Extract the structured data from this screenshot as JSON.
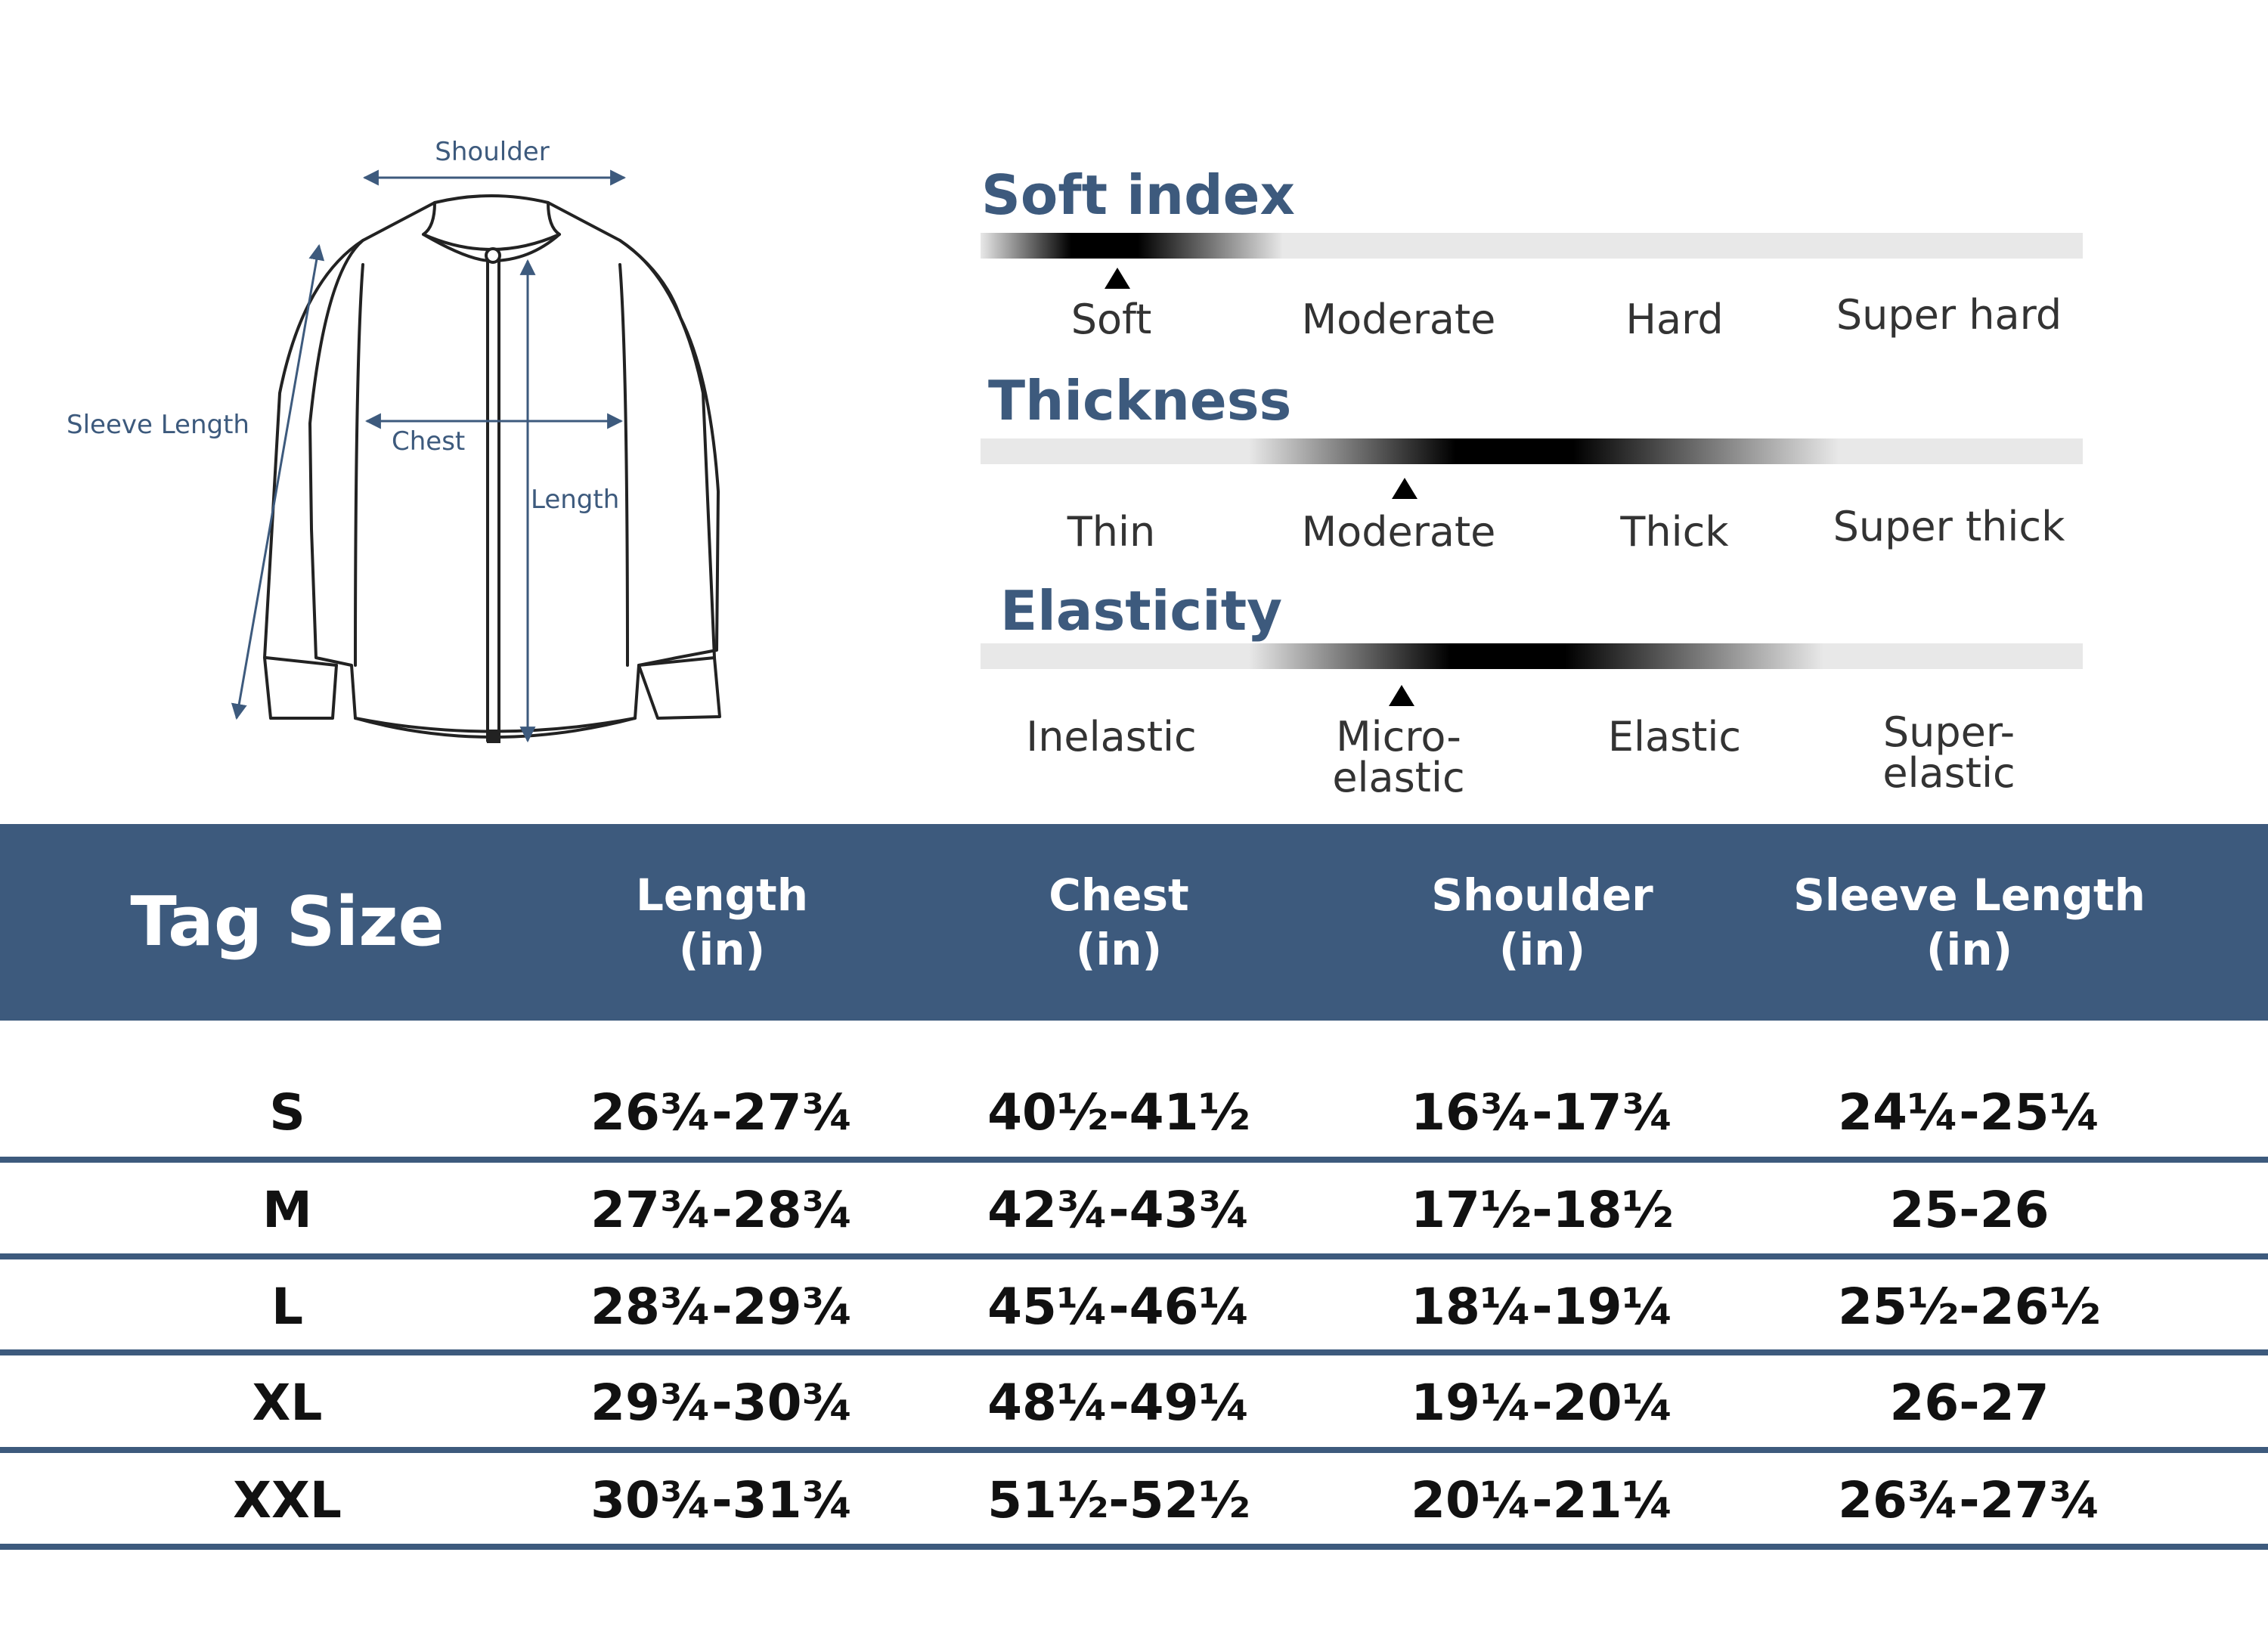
{
  "diagram": {
    "shoulder_label": "Shoulder",
    "sleeve_label": "Sleeve Length",
    "chest_label": "Chest",
    "length_label": "Length"
  },
  "scales": [
    {
      "title": "Soft index",
      "levels": [
        "Soft",
        "Moderate",
        "Hard",
        "Super hard"
      ],
      "selected": "Soft"
    },
    {
      "title": "Thickness",
      "levels": [
        "Thin",
        "Moderate",
        "Thick",
        "Super thick"
      ],
      "selected": "Moderate"
    },
    {
      "title": "Elasticity",
      "levels": [
        "Inelastic",
        "Micro-elastic",
        "Elastic",
        "Super-elastic"
      ],
      "selected": "Micro-elastic"
    }
  ],
  "size_table": {
    "tag_header": "Tag Size",
    "columns": [
      {
        "name": "Length",
        "unit": "(in)"
      },
      {
        "name": "Chest",
        "unit": "(in)"
      },
      {
        "name": "Shoulder",
        "unit": "(in)"
      },
      {
        "name": "Sleeve Length",
        "unit": "(in)"
      }
    ],
    "rows": [
      {
        "size": "S",
        "values": [
          "26¾-27¾",
          "40½-41½",
          "16¾-17¾",
          "24¼-25¼"
        ]
      },
      {
        "size": "M",
        "values": [
          "27¾-28¾",
          "42¾-43¾",
          "17½-18½",
          "25-26"
        ]
      },
      {
        "size": "L",
        "values": [
          "28¾-29¾",
          "45¼-46¼",
          "18¼-19¼",
          "25½-26½"
        ]
      },
      {
        "size": "XL",
        "values": [
          "29¾-30¾",
          "48¼-49¼",
          "19¼-20¼",
          "26-27"
        ]
      },
      {
        "size": "XXL",
        "values": [
          "30¾-31¾",
          "51½-52½",
          "20¼-21¼",
          "26¾-27¾"
        ]
      }
    ]
  },
  "colors": {
    "accent": "#3d5a7d",
    "bar_track": "#e8e8e8",
    "text_dark": "#111111"
  }
}
